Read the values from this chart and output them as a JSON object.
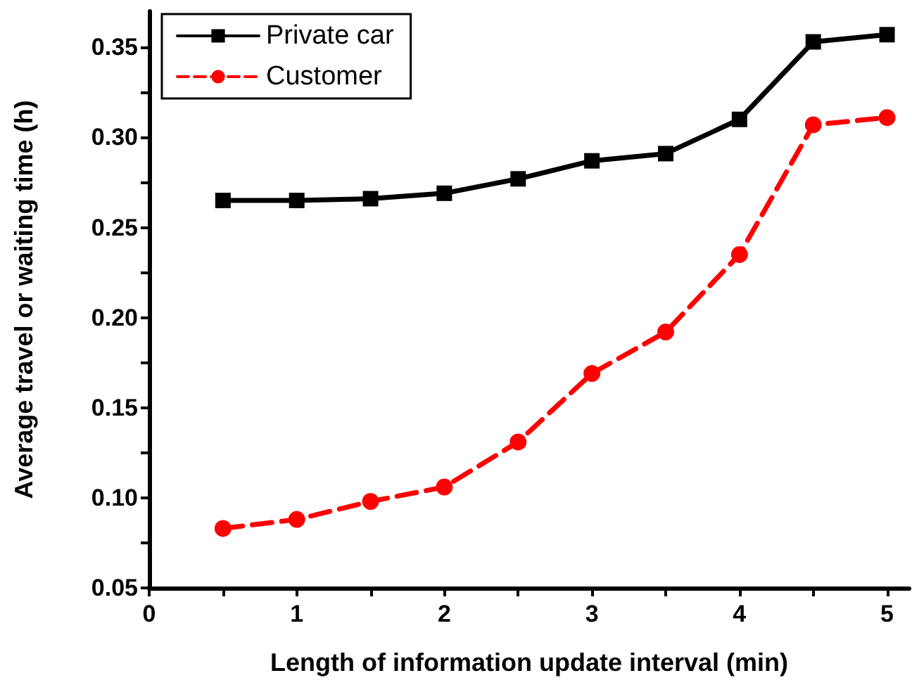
{
  "chart_data": {
    "type": "line",
    "xlabel": "Length of information update interval (min)",
    "ylabel": "Average travel or waiting time (h)",
    "x": [
      0.5,
      1,
      1.5,
      2,
      2.5,
      3,
      3.5,
      4,
      4.5,
      5
    ],
    "series": [
      {
        "name": "Private car",
        "color": "#000000",
        "marker": "square",
        "line_style": "solid",
        "values": [
          0.265,
          0.265,
          0.266,
          0.269,
          0.277,
          0.287,
          0.291,
          0.31,
          0.353,
          0.357
        ]
      },
      {
        "name": "Customer",
        "color": "#ff0000",
        "marker": "circle",
        "line_style": "dashed",
        "values": [
          0.083,
          0.088,
          0.098,
          0.106,
          0.131,
          0.169,
          0.192,
          0.235,
          0.307,
          0.311
        ]
      }
    ],
    "xlim": [
      0,
      5.15
    ],
    "ylim": [
      0.05,
      0.37
    ],
    "xticks": [
      0,
      {
        "value": 0.5,
        "label": null
      },
      1,
      {
        "value": 1.5,
        "label": null
      },
      2,
      {
        "value": 2.5,
        "label": null
      },
      3,
      {
        "value": 3.5,
        "label": null
      },
      4,
      {
        "value": 4.5,
        "label": null
      },
      5
    ],
    "yticks": [
      {
        "value": 0.05,
        "label": "0.05"
      },
      {
        "value": 0.075,
        "label": null
      },
      {
        "value": 0.1,
        "label": "0.10"
      },
      {
        "value": 0.125,
        "label": null
      },
      {
        "value": 0.15,
        "label": "0.15"
      },
      {
        "value": 0.175,
        "label": null
      },
      {
        "value": 0.2,
        "label": "0.20"
      },
      {
        "value": 0.225,
        "label": null
      },
      {
        "value": 0.25,
        "label": "0.25"
      },
      {
        "value": 0.275,
        "label": null
      },
      {
        "value": 0.3,
        "label": "0.30"
      },
      {
        "value": 0.325,
        "label": null
      },
      {
        "value": 0.35,
        "label": "0.35"
      }
    ],
    "grid": false,
    "legend": "top left"
  }
}
